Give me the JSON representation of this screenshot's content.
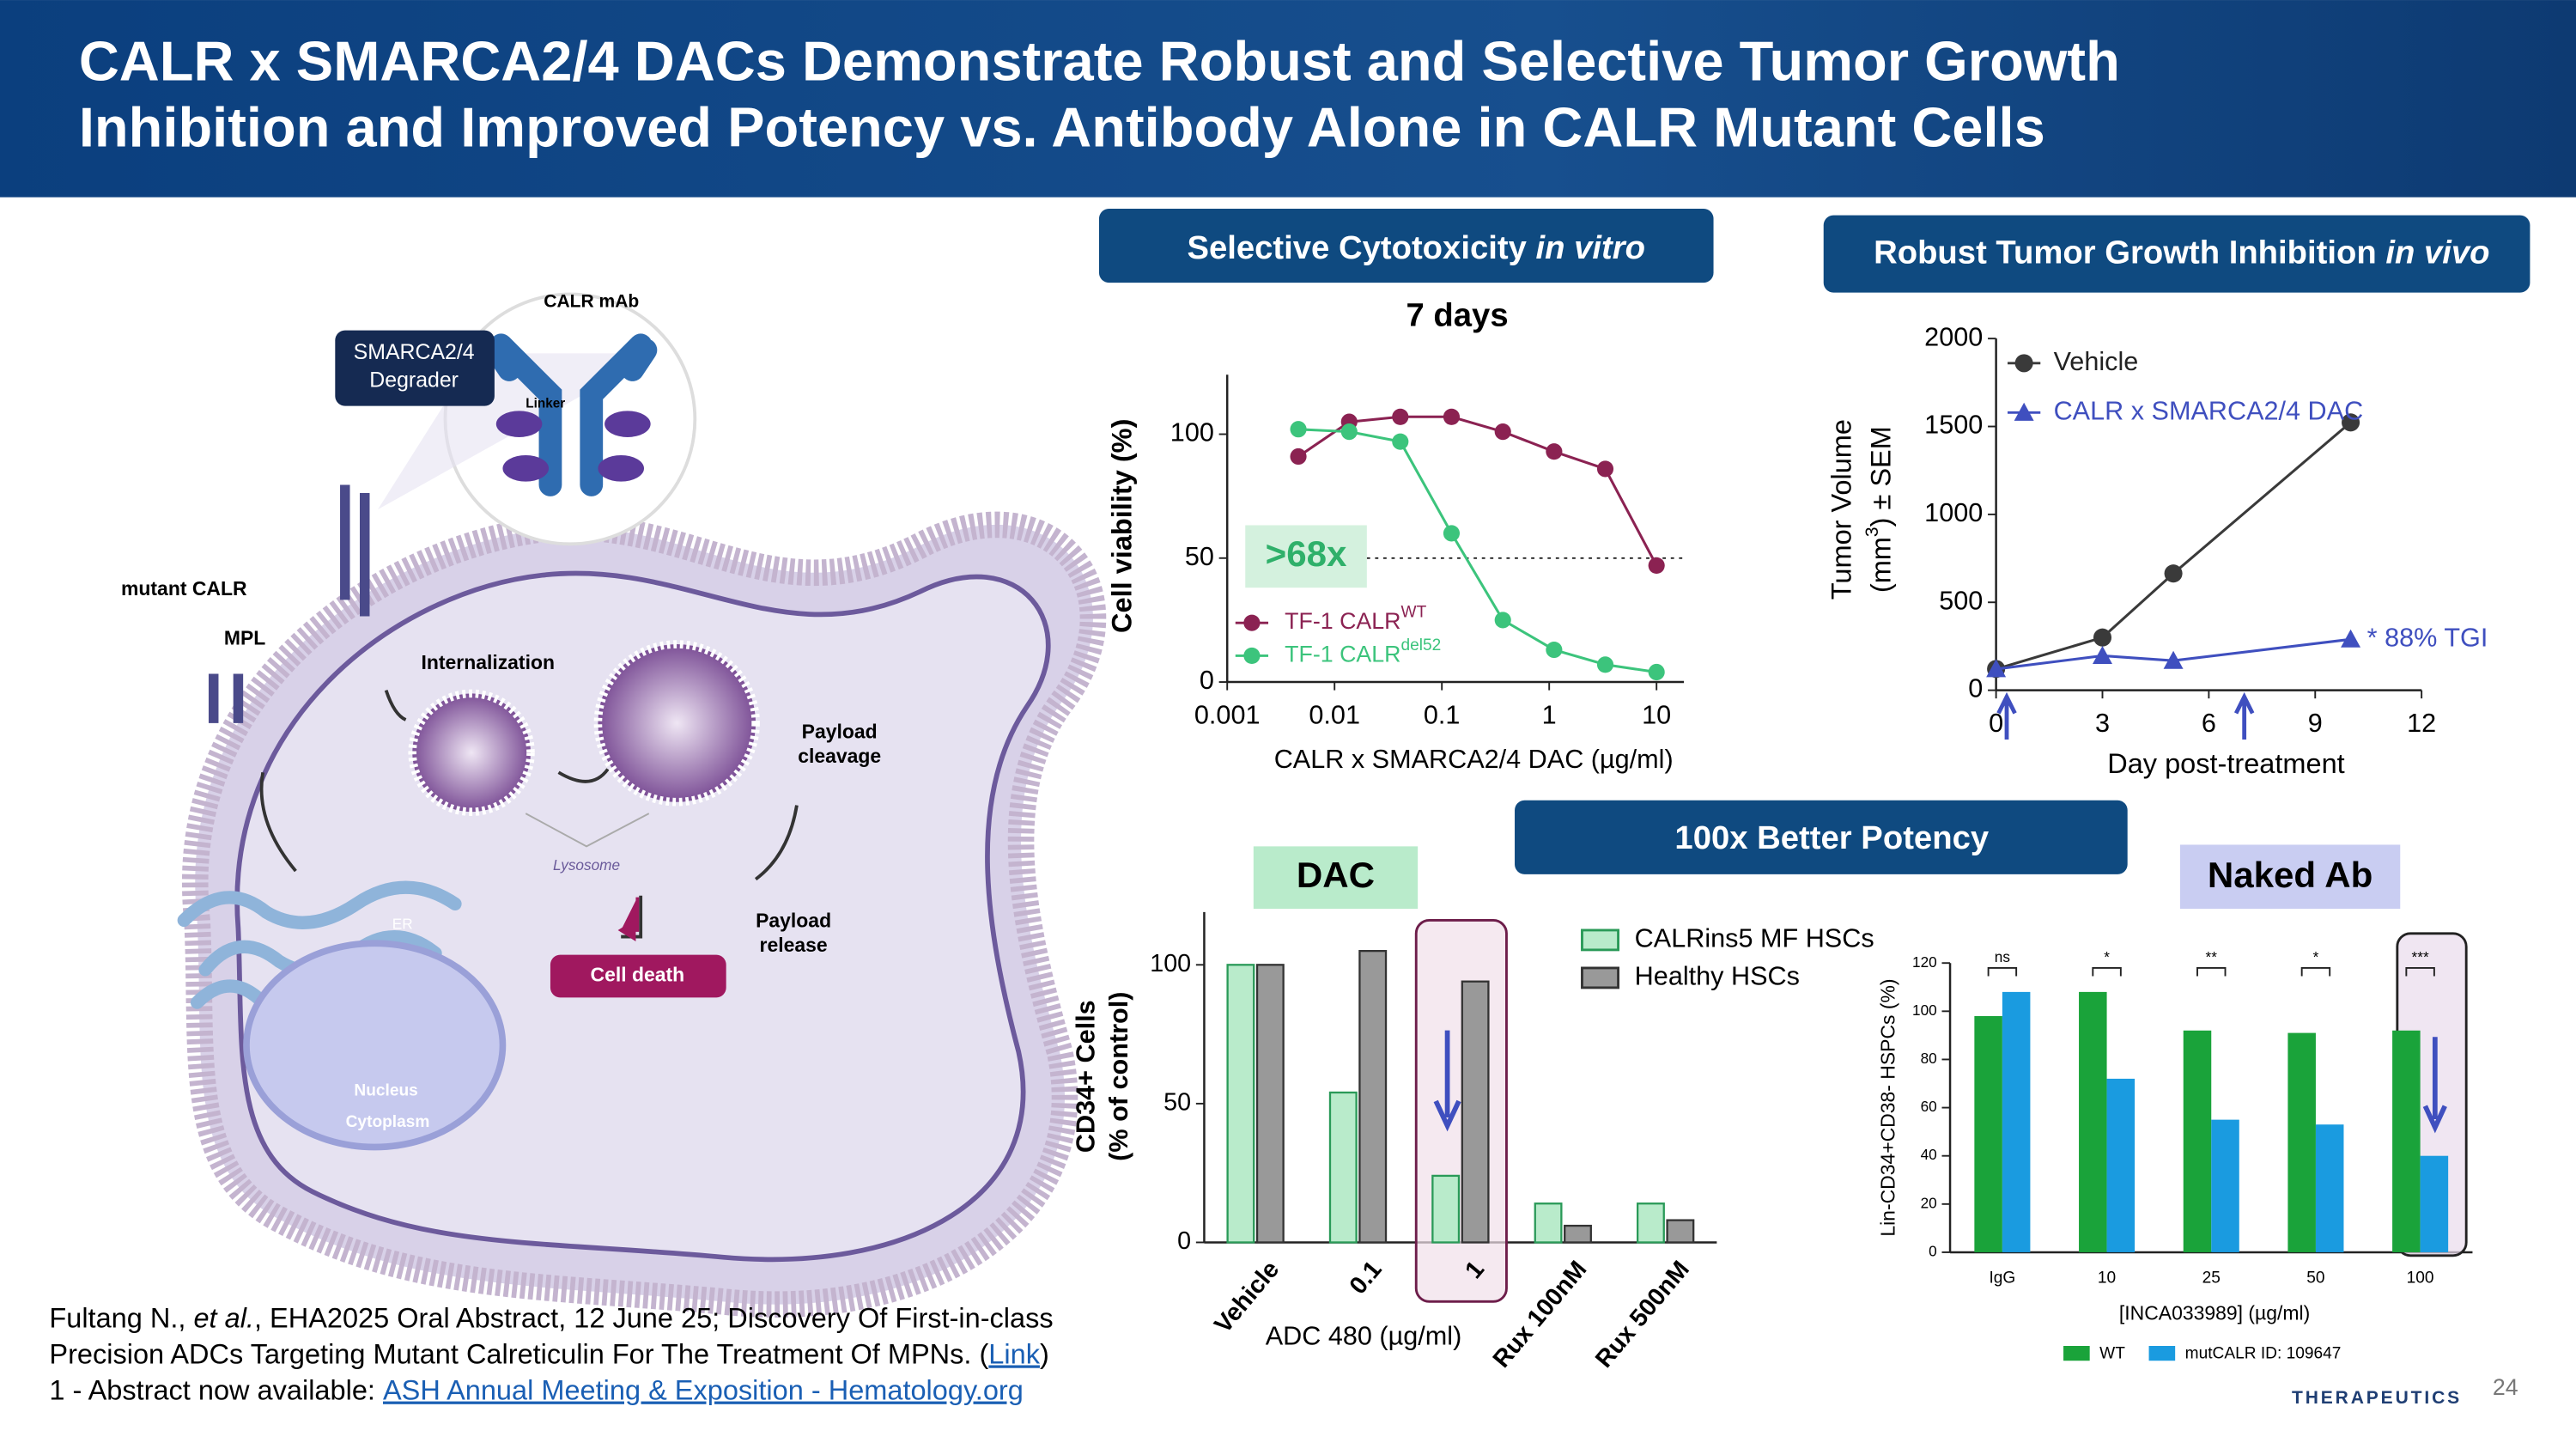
{
  "header": {
    "title_lines": [
      "CALR x SMARCA2/4 DACs Demonstrate Robust and Selective Tumor Growth",
      "Inhibition and Improved Potency vs. Antibody Alone in CALR Mutant Cells"
    ]
  },
  "banners": {
    "in_vitro": [
      "Selective Cytotoxicity ",
      "in vitro"
    ],
    "in_vivo": [
      "Robust Tumor Growth Inhibition ",
      "in vivo"
    ],
    "potency": "100x Better Potency"
  },
  "diagram": {
    "antibody": "CALR mAb",
    "degrader": [
      "SMARCA2/4",
      "Degrader"
    ],
    "linker": "Linker",
    "mutant_calr": "mutant CALR",
    "mpl": "MPL",
    "internalization": "Internalization",
    "payload_cleavage": [
      "Payload",
      "cleavage"
    ],
    "lysosome": "Lysosome",
    "payload_release": [
      "Payload",
      "release"
    ],
    "cell_death": "Cell death",
    "er": "ER",
    "nucleus": "Nucleus",
    "cytoplasm": "Cytoplasm"
  },
  "footnote": {
    "line1": [
      "Fultang N., ",
      "et al.",
      ", EHA2025 Oral Abstract, 12 June 25; Discovery Of First-in-class"
    ],
    "line2": [
      "Precision ADCs Targeting Mutant Calreticulin For The Treatment Of MPNs. (",
      "Link",
      ")"
    ],
    "line3": [
      "1 -  Abstract now available: ",
      "ASH Annual Meeting & Exposition - Hematology.org"
    ]
  },
  "logo": "THERAPEUTICS",
  "page_number": "24",
  "chart_data": [
    {
      "type": "scatter",
      "title": "7 days",
      "x_label": "CALR x SMARCA2/4 DAC  (µg/ml)",
      "y_label": "Cell viability (%)",
      "xscale": "log",
      "xlim": [
        0.001,
        18
      ],
      "xticks": [
        0.001,
        0.01,
        0.1,
        1,
        10
      ],
      "ylim": [
        0,
        124
      ],
      "yticks": [
        0,
        50,
        100
      ],
      "x": [
        0.0046,
        0.0137,
        0.041,
        0.123,
        0.37,
        1.11,
        3.33,
        10
      ],
      "series": [
        {
          "name": "TF-1 CALR",
          "name_superscript": "WT",
          "color": "#8b2252",
          "values": [
            91,
            105,
            107,
            107,
            101,
            93,
            86,
            47
          ]
        },
        {
          "name": "TF-1 CALR",
          "name_superscript": "del52",
          "color": "#3cc47c",
          "values": [
            102,
            101,
            97,
            60,
            25,
            13,
            7,
            4
          ]
        }
      ],
      "reference_line": 50,
      "annotation": ">68x"
    },
    {
      "type": "line",
      "y_label": {
        "line1": "Tumor Volume",
        "line2": [
          "(mm",
          "3",
          ") ± SEM"
        ]
      },
      "x_label": "Day post-treatment",
      "xlim": [
        0,
        12
      ],
      "xticks": [
        0,
        3,
        6,
        9,
        12
      ],
      "ylim": [
        0,
        2000
      ],
      "yticks": [
        0,
        500,
        1000,
        1500,
        2000
      ],
      "x": [
        0,
        3,
        5,
        10
      ],
      "series": [
        {
          "name": "Vehicle",
          "color": "#3a3a3a",
          "values": [
            121,
            300,
            664,
            1523
          ]
        },
        {
          "name": "CALR x SMARCA2/4 DAC",
          "color": "#3f4fbf",
          "values": [
            121,
            196,
            168,
            290
          ]
        }
      ],
      "annotation": "* 88% TGI",
      "dose_days": [
        0.3,
        7
      ],
      "legend": "upper left"
    },
    {
      "type": "bar",
      "title": "DAC",
      "x_label": "ADC 480 (µg/ml)",
      "y_label": [
        "CD34+ Cells",
        "(% of control)"
      ],
      "categories": [
        "Vehicle",
        "0.1",
        "1",
        "Rux 100nM",
        "Rux 500nM"
      ],
      "ylim": [
        0,
        119
      ],
      "yticks": [
        0,
        50,
        100
      ],
      "series": [
        {
          "name": "CALRins5 MF HSCs",
          "color": "#b9ebcb",
          "values": [
            100,
            54,
            24,
            14,
            14
          ]
        },
        {
          "name": "Healthy HSCs",
          "color": "#999999",
          "values": [
            100,
            105,
            94,
            6,
            8
          ]
        }
      ]
    },
    {
      "type": "bar",
      "title": "Naked Ab",
      "x_label": "[INCA033989] (µg/ml)",
      "y_label": "Lin-CD34+CD38- HSPCs (%)",
      "categories": [
        "IgG",
        "10",
        "25",
        "50",
        "100"
      ],
      "ylim": [
        0,
        120
      ],
      "yticks": [
        0,
        20,
        40,
        60,
        80,
        100,
        120
      ],
      "series": [
        {
          "name": "WT",
          "color": "#1aa33a",
          "values": [
            98,
            108,
            92,
            91,
            92
          ]
        },
        {
          "name": "mutCALR ID: 109647",
          "color": "#1a9be0",
          "values": [
            108,
            72,
            55,
            53,
            40
          ]
        }
      ],
      "significance": [
        "ns",
        "*",
        "**",
        "*",
        "***"
      ]
    }
  ]
}
